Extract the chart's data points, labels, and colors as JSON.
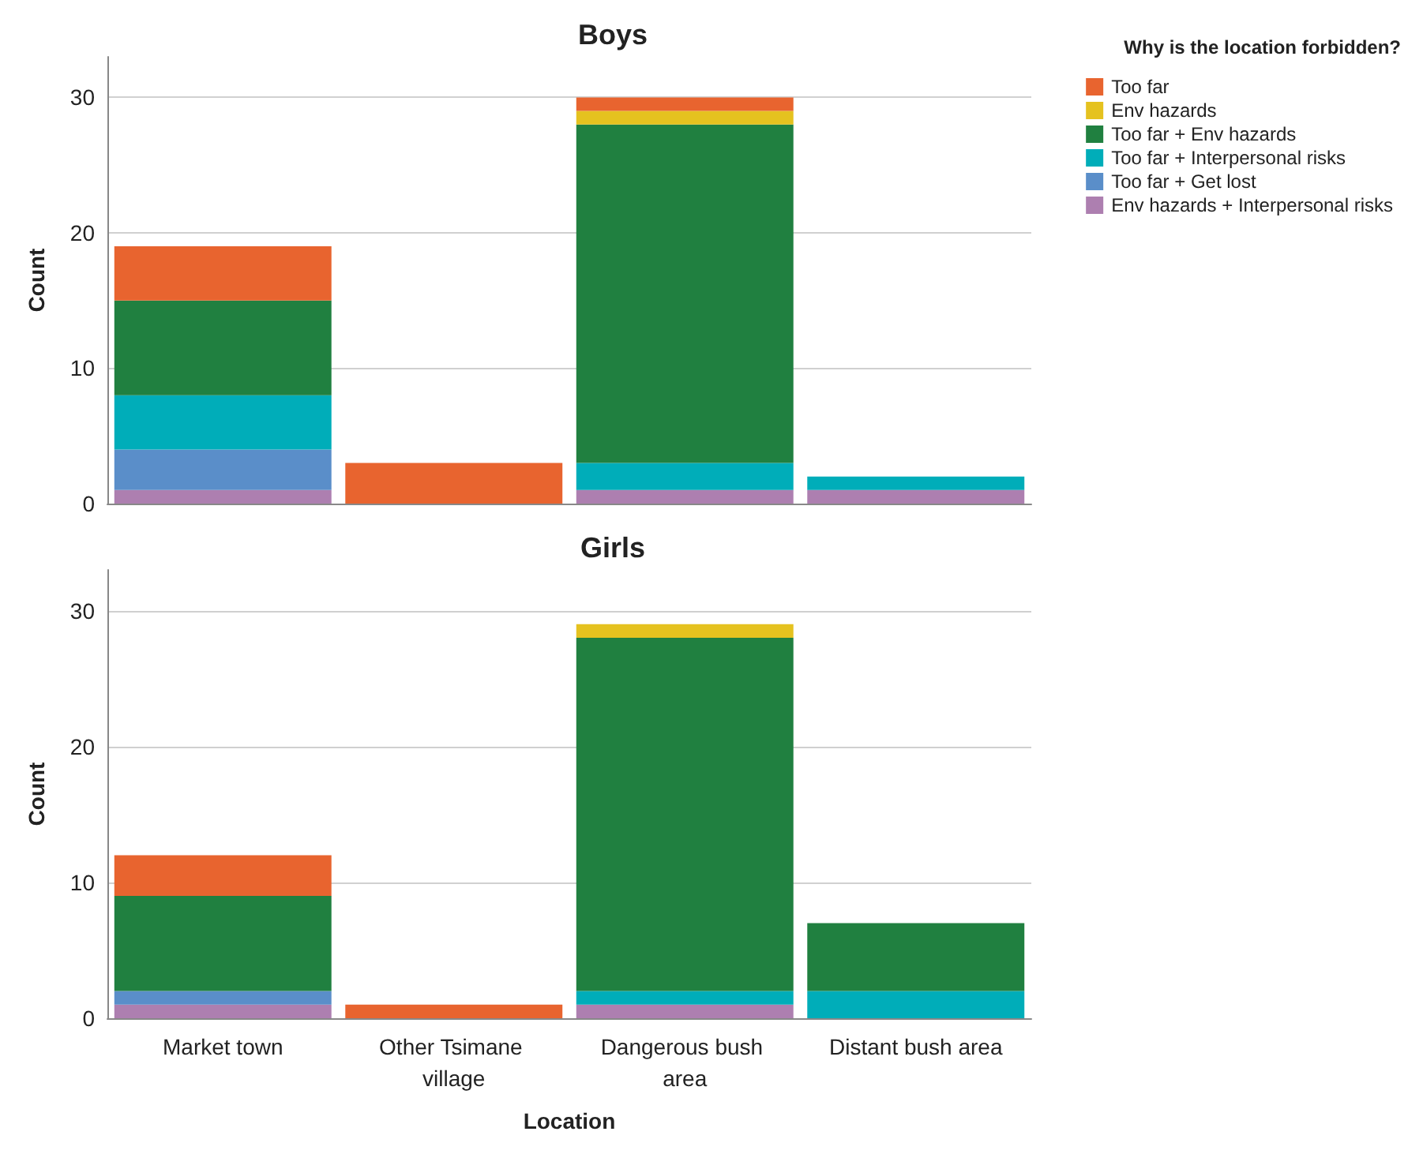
{
  "chart_data": [
    {
      "type": "bar",
      "title": "Boys",
      "ylabel": "Count",
      "legend_title": "Why is the location forbidden?",
      "categories": [
        "Market town",
        "Other Tsimane village",
        "Dangerous bush area",
        "Distant bush area"
      ],
      "stacked": true,
      "ylim": [
        0,
        33
      ],
      "yticks": [
        0,
        10,
        20,
        30
      ],
      "grid": "y",
      "legend": "top right",
      "tick_labels": "y",
      "series": [
        {
          "name": "Env hazards + Interpersonal risks",
          "color": "#ad7fb0",
          "values": [
            1,
            0,
            1,
            1
          ]
        },
        {
          "name": "Too far + Get lost",
          "color": "#5a8ec9",
          "values": [
            3,
            0,
            0,
            0
          ]
        },
        {
          "name": "Too far + Interpersonal risks",
          "color": "#00adb9",
          "values": [
            4,
            0,
            2,
            1
          ]
        },
        {
          "name": "Too far + Env hazards",
          "color": "#208040",
          "values": [
            7,
            0,
            25,
            0
          ]
        },
        {
          "name": "Env hazards",
          "color": "#e5c21f",
          "values": [
            0,
            0,
            1,
            0
          ]
        },
        {
          "name": "Too far",
          "color": "#e8642f",
          "values": [
            4,
            3,
            1,
            0
          ]
        }
      ]
    },
    {
      "type": "bar",
      "title": "Girls",
      "ylabel": "Count",
      "xlabel": "Location",
      "categories": [
        "Market town",
        "Other Tsimane village",
        "Dangerous bush area",
        "Distant bush area"
      ],
      "stacked": true,
      "ylim": [
        0,
        33
      ],
      "yticks": [
        0,
        10,
        20,
        30
      ],
      "grid": "y",
      "legend": false,
      "series": [
        {
          "name": "Env hazards + Interpersonal risks",
          "color": "#ad7fb0",
          "values": [
            1,
            0,
            1,
            0
          ]
        },
        {
          "name": "Too far + Get lost",
          "color": "#5a8ec9",
          "values": [
            1,
            0,
            0,
            0
          ]
        },
        {
          "name": "Too far + Interpersonal risks",
          "color": "#00adb9",
          "values": [
            0,
            0,
            1,
            2
          ]
        },
        {
          "name": "Too far + Env hazards",
          "color": "#208040",
          "values": [
            7,
            0,
            26,
            5
          ]
        },
        {
          "name": "Env hazards",
          "color": "#e5c21f",
          "values": [
            0,
            0,
            1,
            0
          ]
        },
        {
          "name": "Too far",
          "color": "#e8642f",
          "values": [
            3,
            1,
            0,
            0
          ]
        }
      ]
    }
  ]
}
